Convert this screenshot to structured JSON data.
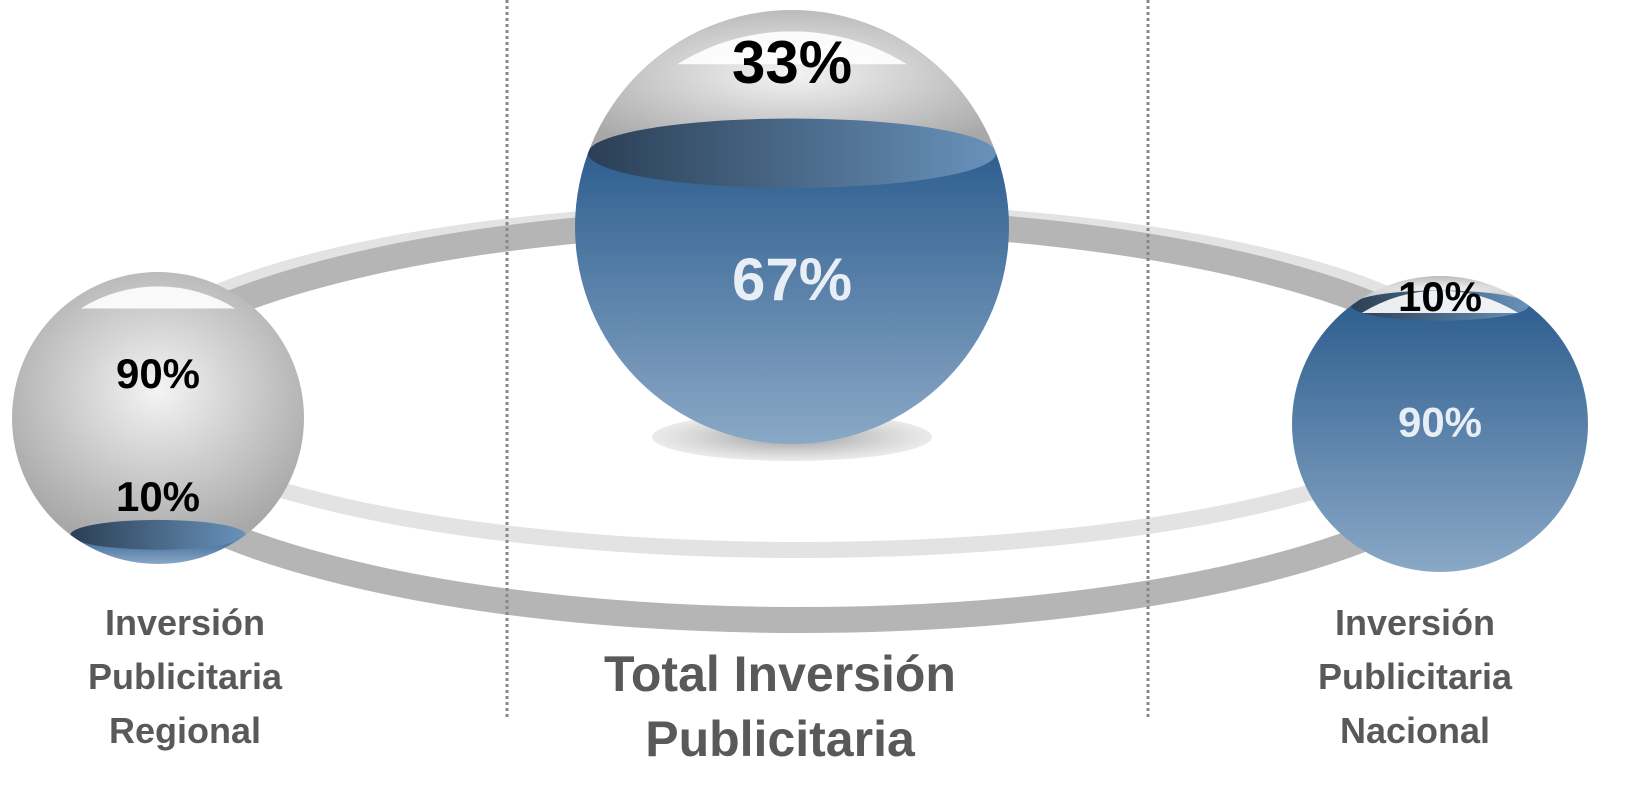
{
  "chart_data": {
    "type": "sphere-fill",
    "categories": [
      "Inversión Publicitaria Regional",
      "Total Inversión Publicitaria",
      "Inversión Publicitaria Nacional"
    ],
    "series": [
      {
        "color": "#c4c4c4",
        "values": [
          90,
          33,
          10
        ],
        "value_labels": [
          "90%",
          "33%",
          "10%"
        ]
      },
      {
        "color": "#3d6a98",
        "values": [
          10,
          67,
          90
        ],
        "value_labels": [
          "10%",
          "67%",
          "90%"
        ]
      }
    ]
  }
}
